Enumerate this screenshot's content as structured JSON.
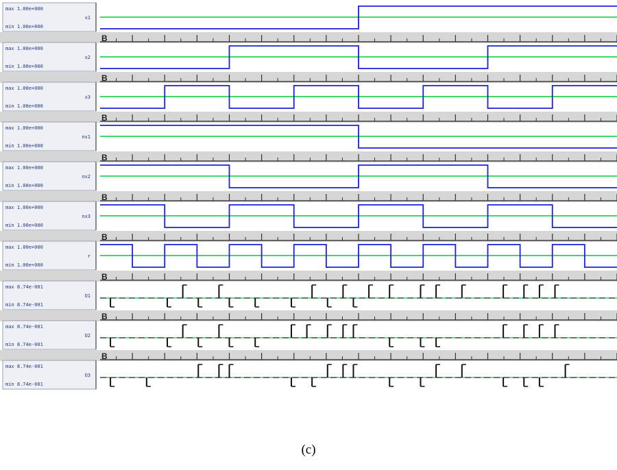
{
  "colors": {
    "digital_trace": "#1a22d8",
    "reference_line": "#00cc33",
    "pulse_trace": "#111111",
    "label_panel": "#eef0f6",
    "ruler_background": "#d6d6d6"
  },
  "caption": "(c)",
  "chart_data": {
    "type": "line",
    "x_range": [
      0,
      1
    ],
    "channels": [
      {
        "max_label": "max 1.00e+000",
        "name": "x1",
        "min_label": "min 1.00e+000",
        "kind": "digital",
        "initial": 0,
        "transitions": [
          0.5
        ]
      },
      {
        "max_label": "max 1.00e+000",
        "name": "x2",
        "min_label": "min 1.00e+000",
        "kind": "digital",
        "initial": 0,
        "transitions": [
          0.25,
          0.5,
          0.75
        ]
      },
      {
        "max_label": "max 1.00e+000",
        "name": "x3",
        "min_label": "min 1.00e+000",
        "kind": "digital",
        "initial": 0,
        "transitions": [
          0.125,
          0.25,
          0.375,
          0.5,
          0.625,
          0.75,
          0.875
        ]
      },
      {
        "max_label": "max 1.00e+000",
        "name": "nx1",
        "min_label": "min 1.00e+000",
        "kind": "digital",
        "initial": 1,
        "transitions": [
          0.5
        ]
      },
      {
        "max_label": "max 1.00e+000",
        "name": "nx2",
        "min_label": "min 1.00e+000",
        "kind": "digital",
        "initial": 1,
        "transitions": [
          0.25,
          0.5,
          0.75
        ]
      },
      {
        "max_label": "max 1.00e+000",
        "name": "nx3",
        "min_label": "min 1.00e+000",
        "kind": "digital",
        "initial": 1,
        "transitions": [
          0.125,
          0.25,
          0.375,
          0.5,
          0.625,
          0.75,
          0.875
        ]
      },
      {
        "max_label": "max 1.00e+000",
        "name": "r",
        "min_label": "min 1.00e+000",
        "kind": "digital",
        "initial": 1,
        "transitions": [
          0.0625,
          0.125,
          0.1875,
          0.25,
          0.3125,
          0.375,
          0.4375,
          0.5,
          0.5625,
          0.625,
          0.6875,
          0.75,
          0.8125,
          0.875,
          0.9375
        ]
      },
      {
        "max_label": "max 8.74e-001",
        "name": "O1",
        "min_label": "min 8.74e-001",
        "kind": "pulse",
        "pulses": [
          [
            0.02,
            -1
          ],
          [
            0.13,
            -1
          ],
          [
            0.16,
            1
          ],
          [
            0.19,
            -1
          ],
          [
            0.23,
            1
          ],
          [
            0.25,
            -1
          ],
          [
            0.3,
            -1
          ],
          [
            0.37,
            -1
          ],
          [
            0.41,
            1
          ],
          [
            0.44,
            -1
          ],
          [
            0.47,
            1
          ],
          [
            0.49,
            -1
          ],
          [
            0.52,
            1
          ],
          [
            0.56,
            1
          ],
          [
            0.62,
            1
          ],
          [
            0.65,
            1
          ],
          [
            0.7,
            1
          ],
          [
            0.78,
            1
          ],
          [
            0.82,
            1
          ],
          [
            0.85,
            1
          ],
          [
            0.88,
            1
          ]
        ]
      },
      {
        "max_label": "max 8.74e-001",
        "name": "O2",
        "min_label": "min 8.74e-001",
        "kind": "pulse",
        "pulses": [
          [
            0.02,
            -1
          ],
          [
            0.13,
            -1
          ],
          [
            0.16,
            1
          ],
          [
            0.19,
            -1
          ],
          [
            0.23,
            1
          ],
          [
            0.25,
            -1
          ],
          [
            0.3,
            -1
          ],
          [
            0.37,
            1
          ],
          [
            0.4,
            1
          ],
          [
            0.44,
            1
          ],
          [
            0.47,
            1
          ],
          [
            0.49,
            1
          ],
          [
            0.56,
            -1
          ],
          [
            0.62,
            -1
          ],
          [
            0.65,
            -1
          ],
          [
            0.78,
            1
          ],
          [
            0.82,
            1
          ],
          [
            0.85,
            1
          ],
          [
            0.88,
            1
          ]
        ]
      },
      {
        "max_label": "max 8.74e-001",
        "name": "O3",
        "min_label": "min 8.74e-001",
        "kind": "pulse",
        "pulses": [
          [
            0.02,
            -1
          ],
          [
            0.09,
            -1
          ],
          [
            0.19,
            1
          ],
          [
            0.23,
            1
          ],
          [
            0.25,
            1
          ],
          [
            0.37,
            -1
          ],
          [
            0.41,
            -1
          ],
          [
            0.44,
            1
          ],
          [
            0.47,
            1
          ],
          [
            0.49,
            1
          ],
          [
            0.56,
            -1
          ],
          [
            0.62,
            -1
          ],
          [
            0.65,
            1
          ],
          [
            0.7,
            1
          ],
          [
            0.78,
            -1
          ],
          [
            0.82,
            -1
          ],
          [
            0.85,
            -1
          ],
          [
            0.9,
            1
          ]
        ]
      }
    ]
  }
}
